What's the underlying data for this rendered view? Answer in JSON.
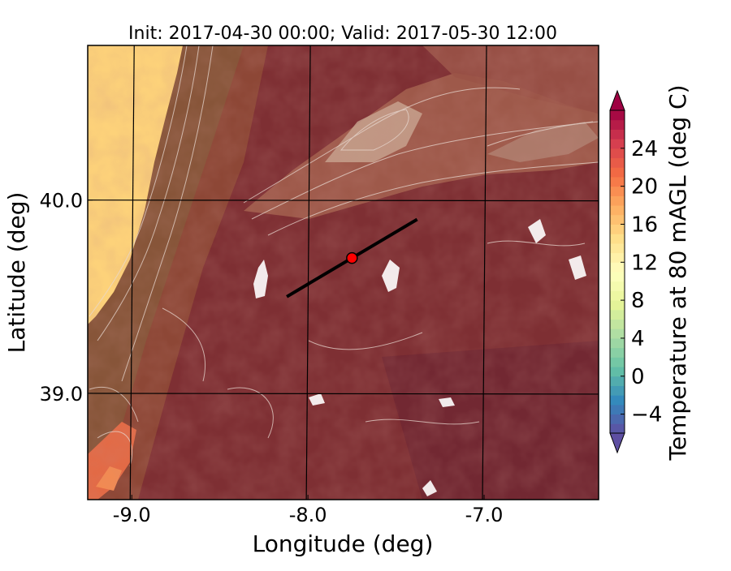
{
  "chart_data": {
    "type": "heatmap",
    "title": "Init: 2017-04-30 00:00; Valid: 2017-05-30 12:00",
    "xlabel": "Longitude (deg)",
    "ylabel": "Latitude (deg)",
    "xlim": [
      -9.25,
      -6.35
    ],
    "ylim": [
      38.45,
      40.8
    ],
    "xticks": [
      -9.0,
      -8.0,
      -7.0
    ],
    "xtick_labels": [
      "-9.0",
      "-8.0",
      "-7.0"
    ],
    "yticks": [
      39.0,
      40.0
    ],
    "ytick_labels": [
      "39.0",
      "40.0"
    ],
    "grid": true,
    "colorbar": {
      "label": "Temperature at 80 mAGL (deg C)",
      "min": -6,
      "max": 28,
      "extend": "both",
      "ticks": [
        -4,
        0,
        4,
        8,
        12,
        16,
        20,
        24
      ],
      "tick_labels": [
        "−4",
        "0",
        "4",
        "8",
        "12",
        "16",
        "20",
        "24"
      ],
      "colormap": "Spectral_r",
      "colors": [
        "#5e4fa2",
        "#3288bd",
        "#66c2a5",
        "#abdda4",
        "#e6f598",
        "#ffffbf",
        "#fee08b",
        "#fdae61",
        "#f46d43",
        "#d53e4f",
        "#9e0142"
      ]
    },
    "overlays": {
      "transect_line": {
        "lon": [
          -8.12,
          -7.38
        ],
        "lat": [
          39.5,
          39.9
        ],
        "color": "#000000"
      },
      "marker": {
        "lon": -7.75,
        "lat": 39.7,
        "color": "#ff0000"
      },
      "ocean_color": "#fdd27a",
      "land_color": "#8b3a33"
    }
  }
}
